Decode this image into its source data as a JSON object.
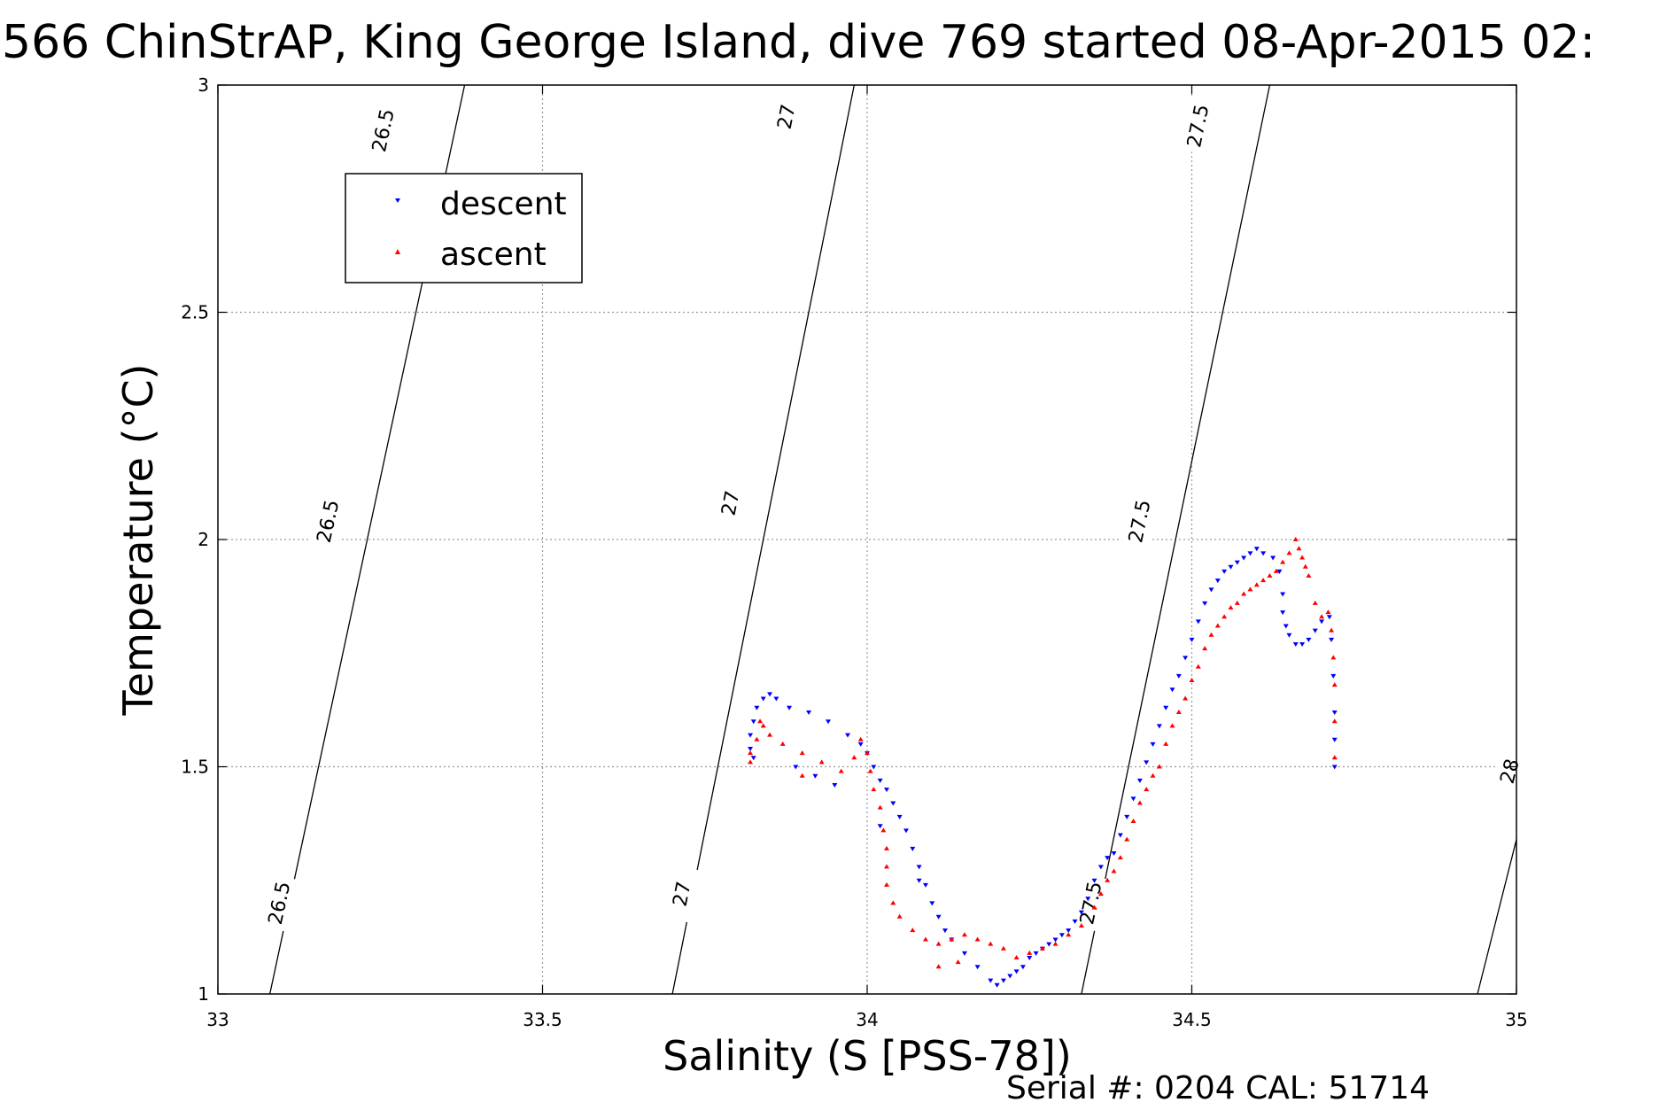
{
  "chart_data": {
    "type": "scatter",
    "title": "566 ChinStrAP, King George Island, dive 769 started 08-Apr-2015 02:",
    "xlabel": "Salinity (S [PSS-78])",
    "ylabel": "Temperature (°C)",
    "xlim": [
      33,
      35
    ],
    "ylim": [
      1,
      3
    ],
    "xticks": [
      33,
      33.5,
      34,
      34.5,
      35
    ],
    "yticks": [
      1,
      1.5,
      2,
      2.5,
      3
    ],
    "xtick_labels": [
      "33",
      "33.5",
      "34",
      "34.5",
      "35"
    ],
    "ytick_labels": [
      "1",
      "1.5",
      "2",
      "2.5",
      "3"
    ],
    "grid": true,
    "legend_position": "upper-left",
    "footer": "Serial #: 0204  CAL: 51714",
    "contours": [
      {
        "label": "26.5",
        "points": [
          [
            33.08,
            1.0
          ],
          [
            33.38,
            3.0
          ]
        ],
        "label_at": [
          [
            33.095,
            1.2
          ],
          [
            33.17,
            2.04
          ],
          [
            33.255,
            2.9
          ]
        ]
      },
      {
        "label": "27",
        "points": [
          [
            33.7,
            1.0
          ],
          [
            33.98,
            3.0
          ]
        ],
        "label_at": [
          [
            33.715,
            1.22
          ],
          [
            33.79,
            2.08
          ],
          [
            33.876,
            2.93
          ]
        ]
      },
      {
        "label": "27.5",
        "points": [
          [
            34.33,
            1.0
          ],
          [
            34.62,
            3.0
          ]
        ],
        "label_at": [
          [
            34.345,
            1.2
          ],
          [
            34.42,
            2.04
          ],
          [
            34.51,
            2.91
          ]
        ]
      },
      {
        "label": "28",
        "points": [
          [
            34.94,
            1.0
          ],
          [
            35.0,
            1.34
          ]
        ],
        "label_at": [
          [
            34.99,
            1.49
          ]
        ]
      }
    ],
    "series": [
      {
        "name": "descent",
        "color": "#0000ff",
        "marker": "triangle-down",
        "points": [
          [
            34.72,
            1.5
          ],
          [
            34.72,
            1.56
          ],
          [
            34.72,
            1.62
          ],
          [
            34.718,
            1.7
          ],
          [
            34.715,
            1.78
          ],
          [
            34.712,
            1.83
          ],
          [
            34.7,
            1.82
          ],
          [
            34.69,
            1.8
          ],
          [
            34.68,
            1.78
          ],
          [
            34.67,
            1.77
          ],
          [
            34.66,
            1.77
          ],
          [
            34.65,
            1.79
          ],
          [
            34.645,
            1.81
          ],
          [
            34.64,
            1.84
          ],
          [
            34.64,
            1.88
          ],
          [
            34.635,
            1.93
          ],
          [
            34.625,
            1.96
          ],
          [
            34.61,
            1.97
          ],
          [
            34.6,
            1.98
          ],
          [
            34.59,
            1.97
          ],
          [
            34.58,
            1.96
          ],
          [
            34.57,
            1.95
          ],
          [
            34.56,
            1.94
          ],
          [
            34.55,
            1.93
          ],
          [
            34.54,
            1.91
          ],
          [
            34.53,
            1.89
          ],
          [
            34.52,
            1.86
          ],
          [
            34.51,
            1.82
          ],
          [
            34.5,
            1.78
          ],
          [
            34.49,
            1.74
          ],
          [
            34.48,
            1.7
          ],
          [
            34.47,
            1.67
          ],
          [
            34.46,
            1.63
          ],
          [
            34.45,
            1.59
          ],
          [
            34.44,
            1.55
          ],
          [
            34.43,
            1.51
          ],
          [
            34.42,
            1.47
          ],
          [
            34.41,
            1.43
          ],
          [
            34.4,
            1.39
          ],
          [
            34.39,
            1.35
          ],
          [
            34.38,
            1.31
          ],
          [
            34.37,
            1.3
          ],
          [
            34.36,
            1.28
          ],
          [
            34.35,
            1.25
          ],
          [
            34.34,
            1.21
          ],
          [
            34.33,
            1.18
          ],
          [
            34.32,
            1.16
          ],
          [
            34.31,
            1.14
          ],
          [
            34.3,
            1.13
          ],
          [
            34.29,
            1.12
          ],
          [
            34.28,
            1.11
          ],
          [
            34.27,
            1.1
          ],
          [
            34.26,
            1.09
          ],
          [
            34.25,
            1.08
          ],
          [
            34.24,
            1.06
          ],
          [
            34.23,
            1.05
          ],
          [
            34.22,
            1.04
          ],
          [
            34.21,
            1.03
          ],
          [
            34.2,
            1.02
          ],
          [
            34.19,
            1.03
          ],
          [
            34.17,
            1.06
          ],
          [
            34.15,
            1.09
          ],
          [
            34.13,
            1.12
          ],
          [
            34.12,
            1.14
          ],
          [
            34.11,
            1.17
          ],
          [
            34.1,
            1.2
          ],
          [
            34.09,
            1.24
          ],
          [
            34.08,
            1.28
          ],
          [
            34.07,
            1.32
          ],
          [
            34.06,
            1.36
          ],
          [
            34.05,
            1.39
          ],
          [
            34.04,
            1.42
          ],
          [
            34.03,
            1.45
          ],
          [
            34.02,
            1.47
          ],
          [
            34.01,
            1.5
          ],
          [
            34.0,
            1.53
          ],
          [
            33.99,
            1.55
          ],
          [
            33.97,
            1.57
          ],
          [
            33.94,
            1.6
          ],
          [
            33.91,
            1.62
          ],
          [
            33.88,
            1.63
          ],
          [
            33.86,
            1.65
          ],
          [
            33.85,
            1.66
          ],
          [
            33.84,
            1.65
          ],
          [
            33.83,
            1.63
          ],
          [
            33.825,
            1.6
          ],
          [
            33.82,
            1.57
          ],
          [
            33.82,
            1.54
          ],
          [
            33.825,
            1.52
          ],
          [
            33.89,
            1.5
          ],
          [
            33.92,
            1.48
          ],
          [
            33.95,
            1.46
          ],
          [
            34.02,
            1.37
          ],
          [
            34.08,
            1.25
          ]
        ]
      },
      {
        "name": "ascent",
        "color": "#ff0000",
        "marker": "triangle-up",
        "points": [
          [
            33.82,
            1.51
          ],
          [
            33.82,
            1.53
          ],
          [
            33.83,
            1.56
          ],
          [
            33.84,
            1.59
          ],
          [
            33.835,
            1.6
          ],
          [
            33.85,
            1.57
          ],
          [
            33.87,
            1.55
          ],
          [
            33.9,
            1.53
          ],
          [
            33.93,
            1.51
          ],
          [
            33.96,
            1.49
          ],
          [
            33.98,
            1.52
          ],
          [
            33.99,
            1.56
          ],
          [
            34.0,
            1.53
          ],
          [
            34.005,
            1.49
          ],
          [
            34.01,
            1.45
          ],
          [
            34.02,
            1.41
          ],
          [
            34.025,
            1.36
          ],
          [
            34.03,
            1.32
          ],
          [
            34.03,
            1.28
          ],
          [
            34.03,
            1.24
          ],
          [
            34.04,
            1.2
          ],
          [
            34.05,
            1.17
          ],
          [
            34.07,
            1.14
          ],
          [
            34.09,
            1.12
          ],
          [
            34.11,
            1.11
          ],
          [
            34.13,
            1.12
          ],
          [
            34.15,
            1.13
          ],
          [
            34.17,
            1.12
          ],
          [
            34.19,
            1.11
          ],
          [
            34.21,
            1.1
          ],
          [
            34.23,
            1.08
          ],
          [
            34.25,
            1.09
          ],
          [
            34.27,
            1.1
          ],
          [
            34.29,
            1.11
          ],
          [
            34.31,
            1.13
          ],
          [
            34.33,
            1.15
          ],
          [
            34.35,
            1.19
          ],
          [
            34.36,
            1.22
          ],
          [
            34.37,
            1.25
          ],
          [
            34.38,
            1.27
          ],
          [
            34.39,
            1.3
          ],
          [
            34.4,
            1.34
          ],
          [
            34.41,
            1.38
          ],
          [
            34.42,
            1.42
          ],
          [
            34.43,
            1.45
          ],
          [
            34.44,
            1.48
          ],
          [
            34.45,
            1.5
          ],
          [
            34.46,
            1.55
          ],
          [
            34.47,
            1.59
          ],
          [
            34.48,
            1.62
          ],
          [
            34.49,
            1.65
          ],
          [
            34.5,
            1.69
          ],
          [
            34.51,
            1.72
          ],
          [
            34.52,
            1.76
          ],
          [
            34.53,
            1.79
          ],
          [
            34.54,
            1.81
          ],
          [
            34.55,
            1.83
          ],
          [
            34.56,
            1.85
          ],
          [
            34.57,
            1.86
          ],
          [
            34.58,
            1.88
          ],
          [
            34.59,
            1.89
          ],
          [
            34.6,
            1.9
          ],
          [
            34.61,
            1.91
          ],
          [
            34.62,
            1.92
          ],
          [
            34.63,
            1.93
          ],
          [
            34.64,
            1.95
          ],
          [
            34.65,
            1.97
          ],
          [
            34.66,
            2.0
          ],
          [
            34.665,
            1.98
          ],
          [
            34.67,
            1.96
          ],
          [
            34.675,
            1.94
          ],
          [
            34.68,
            1.92
          ],
          [
            34.69,
            1.86
          ],
          [
            34.7,
            1.83
          ],
          [
            34.71,
            1.84
          ],
          [
            34.715,
            1.8
          ],
          [
            34.718,
            1.74
          ],
          [
            34.72,
            1.68
          ],
          [
            34.72,
            1.6
          ],
          [
            34.72,
            1.52
          ],
          [
            33.9,
            1.48
          ],
          [
            34.14,
            1.07
          ],
          [
            34.11,
            1.06
          ]
        ]
      }
    ]
  }
}
